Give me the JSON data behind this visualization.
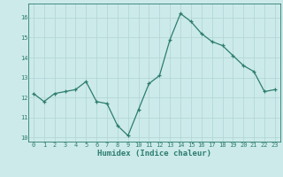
{
  "x": [
    0,
    1,
    2,
    3,
    4,
    5,
    6,
    7,
    8,
    9,
    10,
    11,
    12,
    13,
    14,
    15,
    16,
    17,
    18,
    19,
    20,
    21,
    22,
    23
  ],
  "y": [
    12.2,
    11.8,
    12.2,
    12.3,
    12.4,
    12.8,
    11.8,
    11.7,
    10.6,
    10.1,
    11.4,
    12.7,
    13.1,
    14.9,
    16.2,
    15.8,
    15.2,
    14.8,
    14.6,
    14.1,
    13.6,
    13.3,
    12.3,
    12.4
  ],
  "xlabel": "Humidex (Indice chaleur)",
  "line_color": "#2d7d6e",
  "bg_color": "#cceaea",
  "grid_color": "#b0d4d4",
  "ylim": [
    9.8,
    16.7
  ],
  "xlim": [
    -0.5,
    23.5
  ],
  "yticks": [
    10,
    11,
    12,
    13,
    14,
    15,
    16
  ],
  "xticks": [
    0,
    1,
    2,
    3,
    4,
    5,
    6,
    7,
    8,
    9,
    10,
    11,
    12,
    13,
    14,
    15,
    16,
    17,
    18,
    19,
    20,
    21,
    22,
    23
  ],
  "xlabel_fontsize": 6.5,
  "tick_fontsize": 5.0
}
